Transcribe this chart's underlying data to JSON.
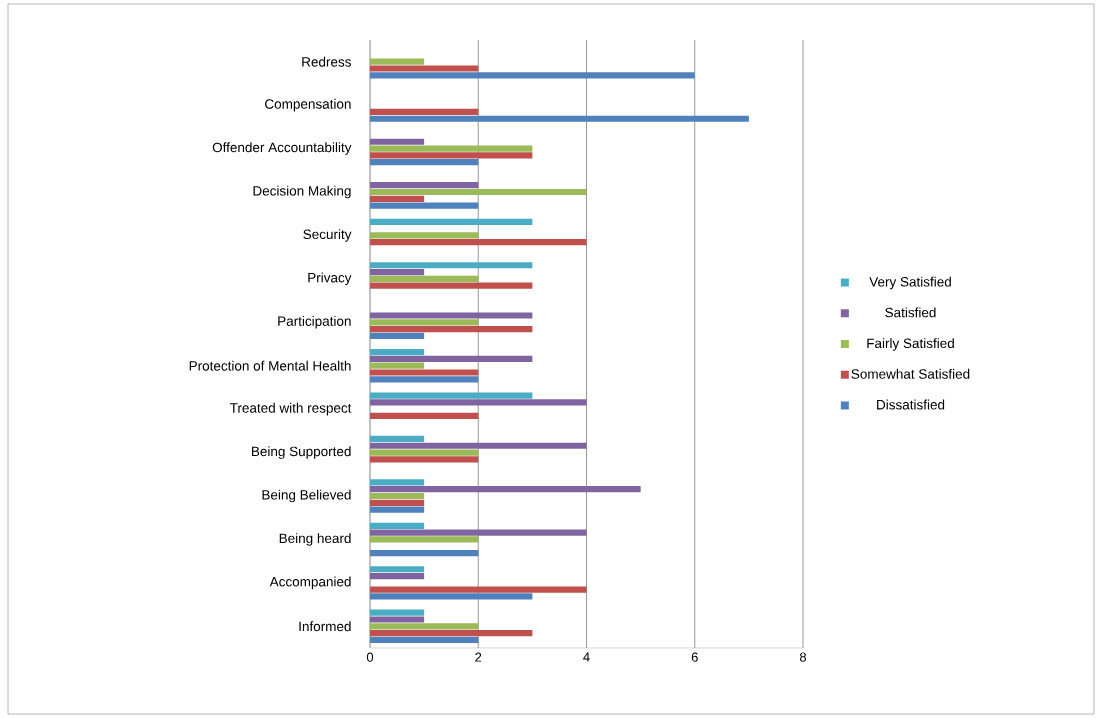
{
  "chart_data": {
    "type": "bar",
    "orientation": "horizontal",
    "categories": [
      "Redress",
      "Compensation",
      "Offender Accountability",
      "Decision Making",
      "Security",
      "Privacy",
      "Participation",
      "Protection of Mental Health",
      "Treated with respect",
      "Being Supported",
      "Being Believed",
      "Being heard",
      "Accompanied",
      "Informed"
    ],
    "series": [
      {
        "name": "Dissatisfied",
        "color": "#4f81bd",
        "values": [
          6,
          7,
          2,
          2,
          0,
          0,
          1,
          2,
          0,
          0,
          1,
          2,
          3,
          2
        ]
      },
      {
        "name": "Somewhat Satisfied",
        "color": "#c0504d",
        "values": [
          2,
          2,
          3,
          1,
          4,
          3,
          3,
          2,
          2,
          2,
          1,
          0,
          4,
          3
        ]
      },
      {
        "name": "Fairly Satisfied",
        "color": "#9bbb59",
        "values": [
          1,
          0,
          3,
          4,
          2,
          2,
          2,
          1,
          0,
          2,
          1,
          2,
          0,
          2
        ]
      },
      {
        "name": "Satisfied",
        "color": "#8064a2",
        "values": [
          0,
          0,
          1,
          2,
          0,
          1,
          3,
          3,
          4,
          4,
          5,
          4,
          1,
          1
        ]
      },
      {
        "name": "Very Satisfied",
        "color": "#4bacc6",
        "values": [
          0,
          0,
          0,
          0,
          3,
          3,
          0,
          1,
          3,
          1,
          1,
          1,
          1,
          1
        ]
      }
    ],
    "xlim": [
      0,
      8
    ],
    "xticks": [
      0,
      2,
      4,
      6,
      8
    ],
    "grid": "x",
    "legend": "right"
  }
}
